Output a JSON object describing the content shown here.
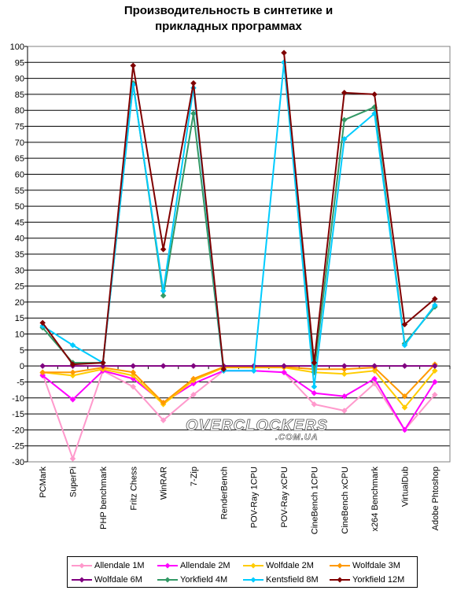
{
  "chart_data": {
    "type": "line",
    "title_lines": [
      "Производительность в синтетике и",
      "прикладных программах"
    ],
    "categories": [
      "PCMark",
      "SuperPi",
      "PHP benchmark",
      "Fritz Chess",
      "WinRAR",
      "7-Zip",
      "RenderBench",
      "POV-Ray  1CPU",
      "POV-Ray  xCPU",
      "CineBench 1CPU",
      "CineBench  xCPU",
      "x264 Benchmark",
      "VirtualDub",
      "Adobe  Phtoshop"
    ],
    "y_ticks": [
      "100",
      "95",
      "90",
      "85",
      "80",
      "75",
      "70",
      "65",
      "60",
      "55",
      "50",
      "45",
      "40",
      "35",
      "30",
      "25",
      "20",
      "15",
      "10",
      "5",
      "0",
      "-5",
      "-10",
      "-15",
      "-20",
      "-25",
      "-30"
    ],
    "ylim": [
      -30,
      100
    ],
    "y_step": 5,
    "grid": true,
    "legend_position": "bottom",
    "series": [
      {
        "name": "Allendale 1M",
        "color": "#ff99cc",
        "marker": "diamond",
        "values": [
          -2.5,
          -29,
          -1.5,
          -6.5,
          -17,
          -9,
          -1.5,
          null,
          -2,
          -12,
          -14,
          -5.5,
          -20,
          -9
        ]
      },
      {
        "name": "Allendale 2M",
        "color": "#ff00ff",
        "marker": "diamond",
        "values": [
          -3,
          -10.5,
          -1.5,
          -4,
          -11.5,
          -5.5,
          -1.5,
          -1.5,
          -2,
          -8.5,
          -9.5,
          -4,
          -20,
          -5
        ]
      },
      {
        "name": "Wolfdale 2M",
        "color": "#ffcc00",
        "marker": "diamond",
        "values": [
          -2,
          -3,
          -1,
          -3,
          -12,
          -4.5,
          -0.5,
          -0.5,
          -0.5,
          -2,
          -2.5,
          -1.5,
          -13,
          -1.5
        ]
      },
      {
        "name": "Wolfdale 3M",
        "color": "#ff9900",
        "marker": "diamond",
        "values": [
          -2,
          -2,
          -0.5,
          -2,
          -11.5,
          -4,
          -0.3,
          -0.3,
          -0.3,
          -1,
          -1,
          -0.5,
          -9.5,
          0.5
        ]
      },
      {
        "name": "Wolfdale 6M",
        "color": "#800080",
        "marker": "diamond",
        "values": [
          0,
          0,
          0,
          0,
          0,
          0,
          0,
          0,
          0,
          0,
          0,
          0,
          0,
          0
        ]
      },
      {
        "name": "Yorkfield 4M",
        "color": "#339966",
        "marker": "diamond",
        "values": [
          12,
          1,
          1,
          88.5,
          22,
          79,
          -1.5,
          null,
          95,
          -2,
          77,
          81,
          7,
          18.5
        ]
      },
      {
        "name": "Kentsfield 8M",
        "color": "#00ccff",
        "marker": "diamond",
        "values": [
          12.5,
          6.5,
          1,
          88,
          23.5,
          87,
          -1.5,
          -1.5,
          95,
          -6.5,
          71,
          79,
          6.5,
          19
        ]
      },
      {
        "name": "Yorkfield 12M",
        "color": "#800000",
        "marker": "diamond",
        "values": [
          13.5,
          0.5,
          1,
          94,
          36.5,
          88.5,
          -1,
          null,
          98,
          1,
          85.5,
          85,
          13,
          21
        ]
      }
    ]
  },
  "watermark_text": "OVERCLOCKERS",
  "watermark_suffix": ".COM.UA"
}
